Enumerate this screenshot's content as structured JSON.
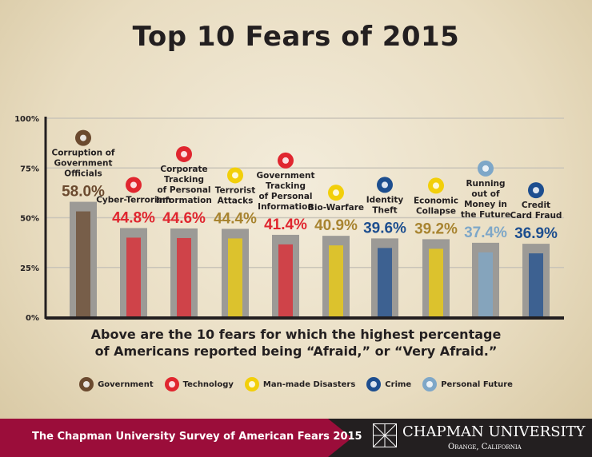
{
  "chart_data": {
    "type": "bar",
    "title": "Top 10 Fears of 2015",
    "ylim": [
      0,
      100
    ],
    "yticks": [
      "0%",
      "25%",
      "50%",
      "75%",
      "100%"
    ],
    "grid": true,
    "categories": [
      "Corruption of Government Officials",
      "Cyber-Terrorism",
      "Corporate Tracking of Personal Information",
      "Terrorist Attacks",
      "Government Tracking of Personal Information",
      "Bio-Warfare",
      "Identity Theft",
      "Economic Collapse",
      "Running out of Money in the Future",
      "Credit Card Fraud"
    ],
    "label_lines": [
      [
        "Corruption of",
        "Government",
        "Officials"
      ],
      [
        "Cyber-Terrorism"
      ],
      [
        "Corporate",
        "Tracking",
        "of Personal",
        "Information"
      ],
      [
        "Terrorist",
        "Attacks"
      ],
      [
        "Government",
        "Tracking",
        "of Personal",
        "Information"
      ],
      [
        "Bio-Warfare"
      ],
      [
        "Identity",
        "Theft"
      ],
      [
        "Economic",
        "Collapse"
      ],
      [
        "Running",
        "out of",
        "Money in",
        "the Future"
      ],
      [
        "Credit",
        "Card Fraud"
      ]
    ],
    "values": [
      58.0,
      44.8,
      44.6,
      44.4,
      41.4,
      40.9,
      39.6,
      39.2,
      37.4,
      36.9
    ],
    "value_labels": [
      "58.0%",
      "44.8%",
      "44.6%",
      "44.4%",
      "41.4%",
      "40.9%",
      "39.6%",
      "39.2%",
      "37.4%",
      "36.9%"
    ],
    "groups": [
      "Government",
      "Technology",
      "Technology",
      "Man-made Disasters",
      "Technology",
      "Man-made Disasters",
      "Crime",
      "Man-made Disasters",
      "Personal Future",
      "Crime"
    ],
    "legend": [
      {
        "name": "Government",
        "color": "#6b4a2f",
        "icon": "column-icon"
      },
      {
        "name": "Technology",
        "color": "#e0262f",
        "icon": "circuit-icon"
      },
      {
        "name": "Man-made Disasters",
        "color": "#f2cf0a",
        "text_color": "#a88430",
        "icon": "radiation-icon"
      },
      {
        "name": "Crime",
        "color": "#1d4e8f",
        "icon": "handcuffs-icon"
      },
      {
        "name": "Personal Future",
        "color": "#7ea7c8",
        "icon": "money-icon"
      }
    ],
    "legend_placement": "bottom"
  },
  "caption": [
    "Above are the 10 fears for which the highest percentage",
    "of Americans reported being “Afraid,” or “Very Afraid.”"
  ],
  "footer": {
    "survey": "The Chapman University Survey of American Fears 2015",
    "university": "CHAPMAN UNIVERSITY",
    "location": "Orange, California"
  }
}
